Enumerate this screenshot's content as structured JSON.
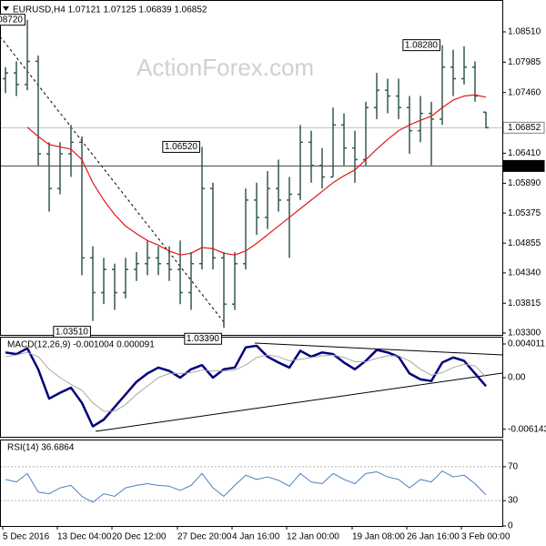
{
  "chart_data": [
    {
      "type": "ohlc",
      "title": "EURUSD,H4 1.07121 1.07125 1.06839 1.06852",
      "watermark": "ActionForex.com",
      "color": "#35584a",
      "open": [
        1.077,
        1.078,
        1.076,
        1.08,
        1.064,
        1.058,
        1.064,
        1.066,
        1.046,
        1.04,
        1.044,
        1.04,
        1.044,
        1.045,
        1.046,
        1.045,
        1.044,
        1.04,
        1.045,
        1.058,
        1.046,
        1.038,
        1.045,
        1.056,
        1.053,
        1.058,
        1.056,
        1.057,
        1.066,
        1.062,
        1.06,
        1.069,
        1.065,
        1.063,
        1.072,
        1.075,
        1.074,
        1.072,
        1.068,
        1.071,
        1.07,
        1.079,
        1.077,
        1.079,
        1.07121
      ],
      "high": [
        1.079,
        1.08,
        1.0872,
        1.081,
        1.066,
        1.066,
        1.069,
        1.067,
        1.048,
        1.046,
        1.045,
        1.046,
        1.047,
        1.049,
        1.048,
        1.048,
        1.049,
        1.047,
        1.0652,
        1.059,
        1.047,
        1.047,
        1.058,
        1.059,
        1.061,
        1.063,
        1.06,
        1.069,
        1.068,
        1.065,
        1.072,
        1.071,
        1.068,
        1.073,
        1.078,
        1.077,
        1.077,
        1.074,
        1.074,
        1.073,
        1.0828,
        1.082,
        1.0826,
        1.08,
        1.07125
      ],
      "low": [
        1.0745,
        1.074,
        1.075,
        1.062,
        1.054,
        1.057,
        1.06,
        1.043,
        1.0351,
        1.038,
        1.037,
        1.039,
        1.042,
        1.043,
        1.043,
        1.042,
        1.038,
        1.037,
        1.044,
        1.044,
        1.0339,
        1.037,
        1.044,
        1.05,
        1.051,
        1.054,
        1.046,
        1.056,
        1.059,
        1.058,
        1.06,
        1.062,
        1.059,
        1.062,
        1.07,
        1.071,
        1.07,
        1.064,
        1.066,
        1.062,
        1.069,
        1.074,
        1.076,
        1.073,
        1.06839
      ],
      "close": [
        1.078,
        1.076,
        1.08,
        1.064,
        1.058,
        1.064,
        1.066,
        1.046,
        1.04,
        1.044,
        1.04,
        1.044,
        1.045,
        1.046,
        1.045,
        1.044,
        1.04,
        1.045,
        1.058,
        1.046,
        1.038,
        1.045,
        1.056,
        1.053,
        1.058,
        1.056,
        1.057,
        1.066,
        1.062,
        1.06,
        1.069,
        1.065,
        1.063,
        1.072,
        1.075,
        1.074,
        1.072,
        1.068,
        1.071,
        1.07,
        1.079,
        1.077,
        1.079,
        1.074,
        1.06852
      ],
      "ma_color": "#e01818",
      "ma_values": [
        null,
        null,
        1.0686,
        1.067,
        1.0656,
        1.0652,
        1.0648,
        1.063,
        1.059,
        1.056,
        1.0535,
        1.0515,
        1.0502,
        1.049,
        1.0482,
        1.0472,
        1.0465,
        1.0468,
        1.0478,
        1.0476,
        1.0468,
        1.0465,
        1.0472,
        1.0485,
        1.05,
        1.0515,
        1.053,
        1.0545,
        1.056,
        1.0575,
        1.059,
        1.0602,
        1.0612,
        1.063,
        1.0648,
        1.0665,
        1.068,
        1.069,
        1.0698,
        1.0705,
        1.072,
        1.0733,
        1.074,
        1.0742,
        1.0738
      ],
      "ylim": [
        1.03268,
        1.09061
      ],
      "yticks": [
        {
          "value": 1.0851,
          "label": "1.08510"
        },
        1.07985,
        {
          "value": 1.0746,
          "label": "1.07460"
        },
        {
          "value": 1.0641,
          "label": "1.06410"
        },
        {
          "value": 1.0589,
          "label": "1.05890"
        },
        1.05375,
        1.04855,
        {
          "value": 1.0434,
          "label": "1.04340"
        },
        1.03815,
        {
          "value": 1.033,
          "label": "1.03300"
        }
      ],
      "levels": [
        {
          "value": 1.06852,
          "label": "1.06852",
          "color": "#c0c0c0"
        },
        {
          "value": 1.0619,
          "label": "1.06190",
          "color": "#000000"
        }
      ],
      "annotations": [
        {
          "value": 1.0872,
          "label": "1.08720"
        },
        {
          "value": 1.0652,
          "label": "1.06520"
        },
        {
          "value": 1.0351,
          "label": "1.03510"
        },
        {
          "value": 1.0339,
          "label": "1.03390"
        },
        {
          "value": 1.0828,
          "label": "1.08280"
        }
      ]
    },
    {
      "type": "line",
      "title": "MACD(12,26,9) -0.001004 0.000091",
      "series": [
        {
          "color": "#00007a",
          "values": [
            0.003,
            0.0028,
            0.0035,
            0.001,
            -0.0025,
            -0.0018,
            -0.0012,
            -0.003,
            -0.0058,
            -0.005,
            -0.0035,
            -0.002,
            -0.0005,
            0.0005,
            0.0012,
            0.0008,
            0.0,
            0.001,
            0.0015,
            0.0,
            0.001,
            0.0012,
            0.0036,
            0.0038,
            0.0025,
            0.0018,
            0.0012,
            0.0032,
            0.0025,
            0.003,
            0.0028,
            0.0018,
            0.001,
            0.002,
            0.0033,
            0.003,
            0.0025,
            0.0005,
            -0.0002,
            -0.0004,
            0.0018,
            0.0024,
            0.002,
            0.0005,
            -0.001004
          ]
        },
        {
          "color": "#a8a8a8",
          "values": [
            0.0025,
            0.0027,
            0.003,
            0.0025,
            0.001,
            0.0,
            -0.0008,
            -0.0015,
            -0.003,
            -0.004,
            -0.004,
            -0.0032,
            -0.002,
            -0.001,
            0.0,
            0.0005,
            0.0005,
            0.0006,
            0.0009,
            0.0008,
            0.0008,
            0.0009,
            0.0015,
            0.0024,
            0.0027,
            0.0025,
            0.002,
            0.0022,
            0.0024,
            0.0026,
            0.0027,
            0.0024,
            0.0019,
            0.0019,
            0.0023,
            0.0026,
            0.0026,
            0.002,
            0.001,
            0.0003,
            0.0006,
            0.0012,
            0.0016,
            0.0014,
            9.1e-05
          ]
        }
      ],
      "ylim": [
        -0.007046,
        0.004878
      ],
      "yticks": [
        0.004011,
        {
          "value": 0,
          "label": "0.00"
        },
        -0.006143
      ]
    },
    {
      "type": "line",
      "title": "RSI(14) 36.6864",
      "color": "#4a80c0",
      "values": [
        55,
        52,
        62,
        40,
        38,
        45,
        48,
        35,
        28,
        38,
        35,
        45,
        48,
        50,
        48,
        47,
        42,
        48,
        62,
        45,
        35,
        48,
        60,
        55,
        58,
        54,
        47,
        62,
        52,
        50,
        62,
        55,
        50,
        62,
        64,
        58,
        55,
        45,
        55,
        52,
        65,
        58,
        60,
        50,
        36.6864
      ],
      "ylim": [
        0,
        100
      ],
      "yticks": [
        70,
        30,
        0
      ],
      "categories": [
        "5 Dec 2016",
        null,
        null,
        null,
        null,
        "13 Dec 04:00",
        null,
        null,
        null,
        null,
        "20 Dec 12:00",
        null,
        null,
        null,
        null,
        null,
        "27 Dec 20:00",
        null,
        null,
        null,
        null,
        "4 Jan 16:00",
        null,
        null,
        null,
        null,
        "12 Jan 00:00",
        null,
        null,
        null,
        null,
        null,
        "19 Jan 08:00",
        null,
        null,
        null,
        null,
        "26 Jan 16:00",
        null,
        null,
        null,
        null,
        "3 Feb 00:00",
        null,
        null
      ]
    }
  ]
}
